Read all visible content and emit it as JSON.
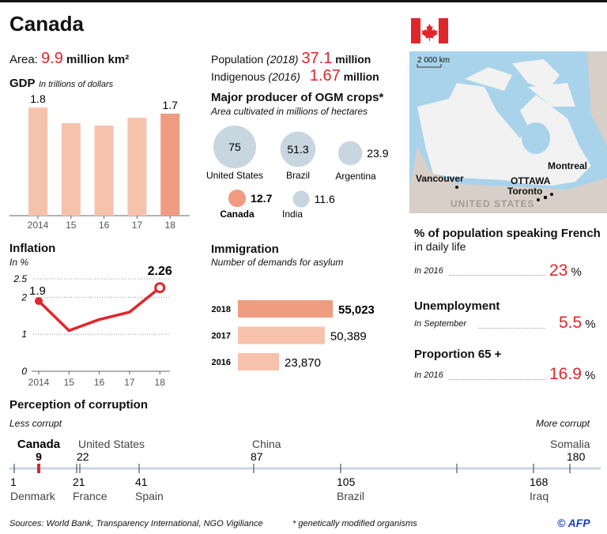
{
  "title": "Canada",
  "area": {
    "label": "Area:",
    "value": "9.9",
    "unit": "million km²"
  },
  "population": {
    "label": "Population",
    "year": "(2018)",
    "value": "37.1",
    "unit": "million"
  },
  "indigenous": {
    "label": "Indigenous",
    "year": "(2016)",
    "value": "1.67",
    "unit": "million"
  },
  "map": {
    "scale": "2 000 km",
    "cities": [
      "Vancouver",
      "OTTAWA",
      "Toronto",
      "Montreal"
    ],
    "neighbor": "UNITED STATES"
  },
  "french": {
    "title_bold": "% of population speaking French",
    "title_rest": "in daily life",
    "period": "In 2016",
    "value": "23",
    "unit": "%"
  },
  "unemployment": {
    "title": "Unemployment",
    "period": "In September",
    "value": "5.5",
    "unit": "%"
  },
  "proportion65": {
    "title": "Proportion 65 +",
    "period": "In 2016",
    "value": "16.9",
    "unit": "%"
  },
  "footer": {
    "sources": "Sources: World Bank, Transparency International, NGO Vigiliance",
    "note": "* genetically modified organisms",
    "credit": "© AFP"
  },
  "colors": {
    "accent": "#e0262b",
    "bar_light": "#f6c2ac",
    "bar_highlight": "#ef9c80",
    "bubble": "#c8d6e0",
    "map_water": "#a9d3ea"
  },
  "chart_data": [
    {
      "id": "gdp",
      "type": "bar",
      "title": "GDP",
      "subtitle": "In trillions of dollars",
      "categories": [
        "2014",
        "15",
        "16",
        "17",
        "18"
      ],
      "values": [
        1.8,
        1.54,
        1.5,
        1.63,
        1.7
      ],
      "data_labels": {
        "2014": "1.8",
        "18": "1.7"
      },
      "highlight": "18"
    },
    {
      "id": "inflation",
      "type": "line",
      "title": "Inflation",
      "subtitle": "In %",
      "x": [
        "2014",
        "15",
        "16",
        "17",
        "18"
      ],
      "values": [
        1.9,
        1.1,
        1.4,
        1.6,
        2.26
      ],
      "data_labels": {
        "2014": "1.9",
        "18": "2.26"
      },
      "yticks": [
        "0",
        "1",
        "2",
        "2.5"
      ],
      "ylim": [
        0,
        2.5
      ],
      "grid": true
    },
    {
      "id": "ogm",
      "type": "bubble",
      "title": "Major producer of OGM crops*",
      "subtitle": "Area cultivated in millions of hectares",
      "points": [
        {
          "name": "United States",
          "value": 75
        },
        {
          "name": "Brazil",
          "value": 51.3
        },
        {
          "name": "Argentina",
          "value": 23.9
        },
        {
          "name": "Canada",
          "value": 12.7,
          "highlight": true
        },
        {
          "name": "India",
          "value": 11.6
        }
      ]
    },
    {
      "id": "immigration",
      "type": "bar",
      "orientation": "horizontal",
      "title": "Immigration",
      "subtitle": "Number of demands for asylum",
      "categories": [
        "2018",
        "2017",
        "2016"
      ],
      "values": [
        55023,
        50389,
        23870
      ],
      "labels": [
        "55,023",
        "50,389",
        "23,870"
      ]
    },
    {
      "id": "corruption",
      "type": "scale",
      "title": "Perception  of corruption",
      "left_label": "Less corrupt",
      "right_label": "More corrupt",
      "points": [
        {
          "name": "Denmark",
          "rank": 1,
          "side": "below"
        },
        {
          "name": "Canada",
          "rank": 9,
          "side": "above",
          "highlight": true
        },
        {
          "name": "France",
          "rank": 21,
          "side": "below"
        },
        {
          "name": "United States",
          "rank": 22,
          "side": "above"
        },
        {
          "name": "Spain",
          "rank": 41,
          "side": "below"
        },
        {
          "name": "China",
          "rank": 87,
          "side": "above"
        },
        {
          "name": "Brazil",
          "rank": 105,
          "side": "below"
        },
        {
          "name": "",
          "rank": 140,
          "side": "none"
        },
        {
          "name": "Iraq",
          "rank": 168,
          "side": "below"
        },
        {
          "name": "Somalia",
          "rank": 180,
          "side": "above"
        }
      ]
    }
  ]
}
